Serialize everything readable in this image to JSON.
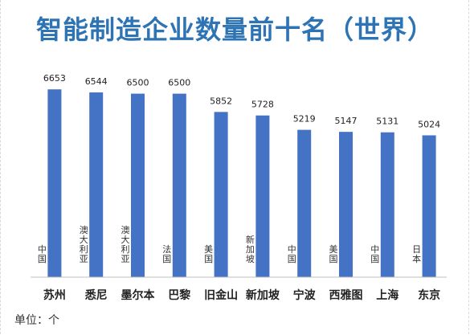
{
  "chart_data": {
    "type": "bar",
    "title": "智能制造企业数量前十名（世界）",
    "unit_label": "单位：个",
    "categories": [
      "苏州",
      "悉尼",
      "墨尔本",
      "巴黎",
      "旧金山",
      "新加坡",
      "宁波",
      "西雅图",
      "上海",
      "东京"
    ],
    "countries": [
      "中国",
      "澳大利亚",
      "澳大利亚",
      "法国",
      "美国",
      "新加坡",
      "中国",
      "美国",
      "中国",
      "日本"
    ],
    "values": [
      6653,
      6544,
      6500,
      6500,
      5852,
      5728,
      5219,
      5147,
      5131,
      5024
    ],
    "bar_color": "#4472c4",
    "ylim": [
      0,
      7200
    ],
    "grid": false,
    "legend": "none"
  }
}
